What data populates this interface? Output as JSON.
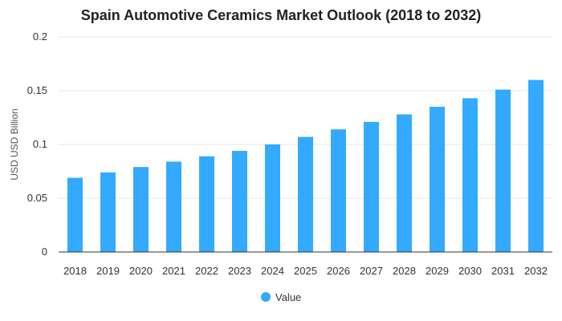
{
  "chart_data": {
    "type": "bar",
    "title": "Spain Automotive Ceramics Market Outlook (2018 to 2032)",
    "xlabel": "",
    "ylabel": "USD USD Billion",
    "categories": [
      "2018",
      "2019",
      "2020",
      "2021",
      "2022",
      "2023",
      "2024",
      "2025",
      "2026",
      "2027",
      "2028",
      "2029",
      "2030",
      "2031",
      "2032"
    ],
    "series": [
      {
        "name": "Value",
        "values": [
          0.069,
          0.074,
          0.079,
          0.084,
          0.089,
          0.094,
          0.1,
          0.107,
          0.114,
          0.121,
          0.128,
          0.135,
          0.143,
          0.151,
          0.16
        ]
      }
    ],
    "ylim": [
      0,
      0.2
    ],
    "yticks": [
      "0",
      "0.05",
      "0.1",
      "0.15",
      "0.2"
    ],
    "grid": true,
    "legend": "bottom-center",
    "colors": {
      "bar": "#33aaff",
      "grid": "#e6e6e6",
      "axis": "#333333"
    }
  }
}
